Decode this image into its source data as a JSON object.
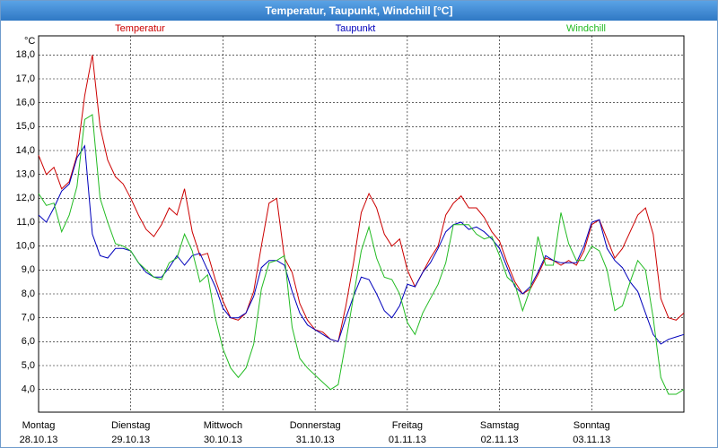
{
  "chart_data": {
    "type": "line",
    "title": "Temperatur, Taupunkt, Windchill [°C]",
    "y_label": "°C",
    "x": [
      0,
      2,
      4,
      6,
      8,
      10,
      12,
      14,
      16,
      18,
      20,
      22,
      24,
      26,
      28,
      30,
      32,
      34,
      36,
      38,
      40,
      42,
      44,
      46,
      48,
      50,
      52,
      54,
      56,
      58,
      60,
      62,
      64,
      66,
      68,
      70,
      72,
      74,
      76,
      78,
      80,
      82,
      84,
      86,
      88,
      90,
      92,
      94,
      96,
      98,
      100,
      102,
      104,
      106,
      108,
      110,
      112,
      114,
      116,
      118,
      120,
      122,
      124,
      126,
      128,
      130,
      132,
      134,
      136,
      138,
      140,
      142,
      144,
      146,
      148,
      150,
      152,
      154,
      156,
      158,
      160,
      162,
      164,
      166,
      168
    ],
    "xlim": [
      0,
      168
    ],
    "xticks": [
      {
        "value": 0,
        "label": "Montag",
        "date": "28.10.13"
      },
      {
        "value": 24,
        "label": "Dienstag",
        "date": "29.10.13"
      },
      {
        "value": 48,
        "label": "Mittwoch",
        "date": "30.10.13"
      },
      {
        "value": 72,
        "label": "Donnerstag",
        "date": "31.10.13"
      },
      {
        "value": 96,
        "label": "Freitag",
        "date": "01.11.13"
      },
      {
        "value": 120,
        "label": "Samstag",
        "date": "02.11.13"
      },
      {
        "value": 144,
        "label": "Sonntag",
        "date": "03.11.13"
      }
    ],
    "ylim": [
      3.05,
      18.8
    ],
    "yticks": [
      {
        "value": 4,
        "label": "4,0"
      },
      {
        "value": 5,
        "label": "5,0"
      },
      {
        "value": 6,
        "label": "6,0"
      },
      {
        "value": 7,
        "label": "7,0"
      },
      {
        "value": 8,
        "label": "8,0"
      },
      {
        "value": 9,
        "label": "9,0"
      },
      {
        "value": 10,
        "label": "10,0"
      },
      {
        "value": 11,
        "label": "11,0"
      },
      {
        "value": 12,
        "label": "12,0"
      },
      {
        "value": 13,
        "label": "13,0"
      },
      {
        "value": 14,
        "label": "14,0"
      },
      {
        "value": 15,
        "label": "15,0"
      },
      {
        "value": 16,
        "label": "16,0"
      },
      {
        "value": 17,
        "label": "17,0"
      },
      {
        "value": 18,
        "label": "18,0"
      }
    ],
    "grid": true,
    "series": [
      {
        "name": "Temperatur",
        "color": "#cc0000",
        "values": [
          13.8,
          13.0,
          13.3,
          12.4,
          12.7,
          13.8,
          16.3,
          18.0,
          15.0,
          13.6,
          12.9,
          12.6,
          12.0,
          11.3,
          10.7,
          10.4,
          10.9,
          11.6,
          11.3,
          12.4,
          10.6,
          9.6,
          9.7,
          8.6,
          7.7,
          7.0,
          6.9,
          7.2,
          8.1,
          10.0,
          11.8,
          12.0,
          9.5,
          8.9,
          7.6,
          6.9,
          6.5,
          6.4,
          6.1,
          6.0,
          7.5,
          9.3,
          11.4,
          12.2,
          11.6,
          10.5,
          10.0,
          10.3,
          9.0,
          8.3,
          8.9,
          9.5,
          10.0,
          11.3,
          11.8,
          12.1,
          11.6,
          11.6,
          11.2,
          10.6,
          10.2,
          9.3,
          8.5,
          8.0,
          8.2,
          8.8,
          9.5,
          9.4,
          9.2,
          9.4,
          9.2,
          9.8,
          10.9,
          11.1,
          10.3,
          9.5,
          9.9,
          10.6,
          11.3,
          11.6,
          10.5,
          7.8,
          7.0,
          6.9,
          7.2
        ]
      },
      {
        "name": "Taupunkt",
        "color": "#0000bb",
        "values": [
          11.3,
          11.0,
          11.6,
          12.3,
          12.6,
          13.7,
          14.2,
          10.5,
          9.6,
          9.5,
          9.9,
          9.9,
          9.8,
          9.3,
          8.9,
          8.7,
          8.7,
          9.1,
          9.6,
          9.2,
          9.6,
          9.7,
          9.0,
          8.3,
          7.4,
          7.0,
          7.0,
          7.2,
          7.9,
          9.1,
          9.4,
          9.4,
          9.2,
          8.1,
          7.2,
          6.7,
          6.5,
          6.3,
          6.1,
          6.0,
          7.0,
          7.9,
          8.7,
          8.6,
          8.0,
          7.3,
          7.0,
          7.5,
          8.4,
          8.3,
          8.9,
          9.3,
          9.9,
          10.6,
          10.9,
          11.0,
          10.7,
          10.8,
          10.6,
          10.3,
          9.9,
          9.1,
          8.3,
          8.0,
          8.3,
          8.9,
          9.6,
          9.4,
          9.3,
          9.3,
          9.3,
          10.0,
          11.0,
          11.1,
          9.9,
          9.4,
          9.1,
          8.5,
          8.1,
          7.2,
          6.3,
          5.9,
          6.1,
          6.2,
          6.3
        ]
      },
      {
        "name": "Windchill",
        "color": "#22bb22",
        "values": [
          12.2,
          11.7,
          11.8,
          10.6,
          11.3,
          12.5,
          15.3,
          15.5,
          12.0,
          11.0,
          10.1,
          10.0,
          9.8,
          9.3,
          9.0,
          8.7,
          8.6,
          9.3,
          9.5,
          10.5,
          9.8,
          8.5,
          8.8,
          7.0,
          5.7,
          4.9,
          4.5,
          4.9,
          5.9,
          8.2,
          9.3,
          9.4,
          9.6,
          6.6,
          5.3,
          4.9,
          4.6,
          4.3,
          4.0,
          4.2,
          6.0,
          7.9,
          9.8,
          10.8,
          9.5,
          8.7,
          8.6,
          8.0,
          6.8,
          6.3,
          7.2,
          7.8,
          8.4,
          9.3,
          10.9,
          10.9,
          10.9,
          10.5,
          10.3,
          10.4,
          9.6,
          8.7,
          8.4,
          7.3,
          8.2,
          10.4,
          9.2,
          9.2,
          11.4,
          10.1,
          9.4,
          9.4,
          10.0,
          9.8,
          9.0,
          7.3,
          7.5,
          8.5,
          9.4,
          9.0,
          7.0,
          4.5,
          3.8,
          3.8,
          4.0
        ]
      }
    ]
  }
}
